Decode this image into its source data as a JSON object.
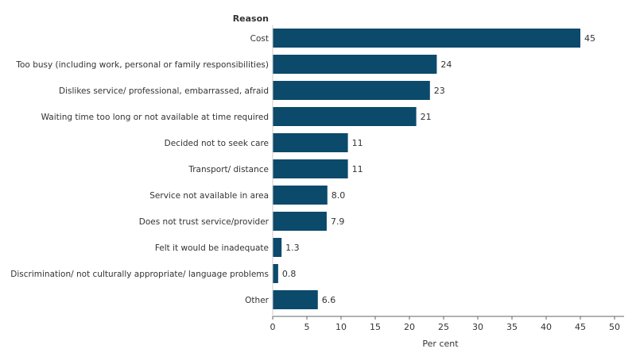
{
  "chart_data": {
    "type": "bar",
    "orientation": "horizontal",
    "y_title": "Reason",
    "xlabel": "Per cent",
    "xlim": [
      0,
      50
    ],
    "x_ticks": [
      0,
      5,
      10,
      15,
      20,
      25,
      30,
      35,
      40,
      45,
      50
    ],
    "grid": false,
    "bar_color": "#0b4a6b",
    "categories": [
      "Cost",
      "Too busy (including work, personal or family responsibilities)",
      "Dislikes service/ professional, embarrassed, afraid",
      "Waiting time too long or not available at time required",
      "Decided not to seek care",
      "Transport/ distance",
      "Service not available in area",
      "Does not trust service/provider",
      "Felt it would be inadequate",
      "Discrimination/ not culturally appropriate/ language problems",
      "Other"
    ],
    "values": [
      45,
      24,
      23,
      21,
      11,
      11,
      8.0,
      7.9,
      1.3,
      0.8,
      6.6
    ],
    "value_labels": [
      "45",
      "24",
      "23",
      "21",
      "11",
      "11",
      "8.0",
      "7.9",
      "1.3",
      "0.8",
      "6.6"
    ]
  }
}
